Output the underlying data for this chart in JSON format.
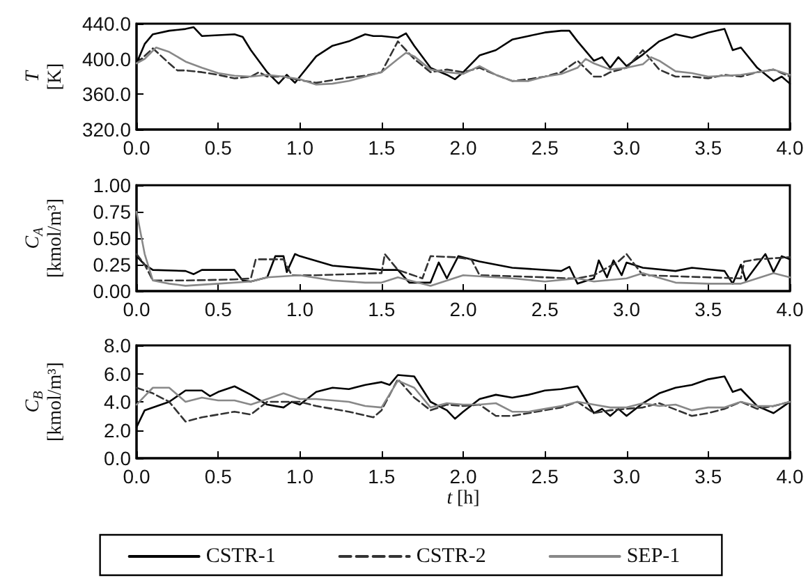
{
  "chart_data": [
    {
      "type": "line",
      "ylabel": "T [K]",
      "xlim": [
        0,
        4
      ],
      "xticks": [
        {
          "value": 0,
          "label": "0.0"
        },
        {
          "value": 0.5,
          "label": "0.5"
        },
        {
          "value": 1,
          "label": "1.0"
        },
        {
          "value": 1.5,
          "label": "1.5"
        },
        {
          "value": 2,
          "label": "2.0"
        },
        {
          "value": 2.5,
          "label": "2.5"
        },
        {
          "value": 3,
          "label": "3.0"
        },
        {
          "value": 3.5,
          "label": "3.5"
        },
        {
          "value": 4,
          "label": "4.0"
        }
      ],
      "ylim": [
        320,
        440
      ],
      "yticks": [
        {
          "value": 320,
          "label": "320.0"
        },
        {
          "value": 360,
          "label": "360.0"
        },
        {
          "value": 400,
          "label": "400.0"
        },
        {
          "value": 440,
          "label": "440.0"
        }
      ],
      "grid": false,
      "legend": false,
      "marker": "none",
      "series": [
        {
          "color": "#000000",
          "line_style": "solid",
          "x": [
            0,
            0.05,
            0.1,
            0.2,
            0.3,
            0.35,
            0.4,
            0.5,
            0.6,
            0.65,
            0.7,
            0.8,
            0.87,
            0.92,
            0.97,
            1.0,
            1.1,
            1.2,
            1.3,
            1.4,
            1.45,
            1.5,
            1.6,
            1.65,
            1.7,
            1.8,
            1.9,
            1.95,
            2.0,
            2.1,
            2.2,
            2.3,
            2.4,
            2.5,
            2.6,
            2.65,
            2.7,
            2.8,
            2.85,
            2.9,
            2.95,
            3.0,
            3.1,
            3.2,
            3.3,
            3.4,
            3.5,
            3.6,
            3.65,
            3.7,
            3.8,
            3.9,
            3.95,
            4.0
          ],
          "values": [
            395,
            417,
            428,
            432,
            434,
            436,
            426,
            427,
            428,
            425,
            410,
            385,
            372,
            382,
            373,
            380,
            403,
            415,
            420,
            428,
            426,
            426,
            424,
            429,
            415,
            390,
            382,
            377,
            385,
            404,
            410,
            422,
            426,
            430,
            432,
            432,
            420,
            398,
            402,
            390,
            402,
            392,
            405,
            420,
            428,
            424,
            430,
            434,
            410,
            413,
            390,
            375,
            380,
            372
          ]
        },
        {
          "color": "#333333",
          "line_style": "dashed",
          "x": [
            0,
            0.1,
            0.2,
            0.25,
            0.3,
            0.4,
            0.5,
            0.6,
            0.7,
            0.75,
            0.8,
            0.9,
            1.0,
            1.1,
            1.2,
            1.3,
            1.4,
            1.5,
            1.6,
            1.7,
            1.8,
            1.9,
            2.0,
            2.1,
            2.2,
            2.3,
            2.4,
            2.5,
            2.6,
            2.7,
            2.8,
            2.85,
            2.9,
            3.0,
            3.1,
            3.2,
            3.3,
            3.4,
            3.5,
            3.6,
            3.7,
            3.8,
            3.9,
            4.0
          ],
          "values": [
            395,
            412,
            395,
            387,
            387,
            385,
            382,
            378,
            380,
            385,
            380,
            380,
            376,
            373,
            376,
            379,
            381,
            385,
            420,
            400,
            385,
            388,
            385,
            390,
            382,
            375,
            377,
            380,
            385,
            398,
            380,
            380,
            385,
            390,
            410,
            388,
            380,
            380,
            378,
            382,
            380,
            385,
            388,
            380
          ]
        },
        {
          "color": "#888888",
          "line_style": "solid",
          "x": [
            0,
            0.05,
            0.12,
            0.2,
            0.3,
            0.4,
            0.5,
            0.6,
            0.7,
            0.8,
            0.9,
            1.0,
            1.1,
            1.2,
            1.3,
            1.4,
            1.5,
            1.6,
            1.65,
            1.7,
            1.8,
            1.9,
            2.0,
            2.1,
            2.2,
            2.3,
            2.4,
            2.5,
            2.6,
            2.7,
            2.75,
            2.8,
            2.9,
            3.0,
            3.1,
            3.15,
            3.2,
            3.3,
            3.4,
            3.5,
            3.6,
            3.7,
            3.8,
            3.9,
            4.0
          ],
          "values": [
            395,
            400,
            413,
            408,
            397,
            390,
            384,
            381,
            380,
            382,
            380,
            377,
            371,
            372,
            375,
            380,
            385,
            400,
            407,
            403,
            388,
            385,
            383,
            392,
            382,
            375,
            375,
            380,
            383,
            390,
            400,
            395,
            388,
            390,
            394,
            402,
            398,
            386,
            384,
            380,
            381,
            382,
            385,
            388,
            382
          ]
        }
      ]
    },
    {
      "type": "line",
      "ylabel": "C$_{A}$ [kmol/m³]",
      "xlim": [
        0,
        4
      ],
      "xticks": [
        {
          "value": 0,
          "label": "0.0"
        },
        {
          "value": 0.5,
          "label": "0.5"
        },
        {
          "value": 1,
          "label": "1.0"
        },
        {
          "value": 1.5,
          "label": "1.5"
        },
        {
          "value": 2,
          "label": "2.0"
        },
        {
          "value": 2.5,
          "label": "2.5"
        },
        {
          "value": 3,
          "label": "3.0"
        },
        {
          "value": 3.5,
          "label": "3.5"
        },
        {
          "value": 4,
          "label": "4.0"
        }
      ],
      "ylim": [
        0,
        1
      ],
      "yticks": [
        {
          "value": 0,
          "label": "0.00"
        },
        {
          "value": 0.25,
          "label": "0.25"
        },
        {
          "value": 0.5,
          "label": "0.50"
        },
        {
          "value": 0.75,
          "label": "0.75"
        },
        {
          "value": 1,
          "label": "1.00"
        }
      ],
      "grid": false,
      "legend": false,
      "marker": "none",
      "series": [
        {
          "color": "#000000",
          "line_style": "solid",
          "x": [
            0,
            0.05,
            0.1,
            0.3,
            0.35,
            0.4,
            0.6,
            0.65,
            0.7,
            0.8,
            0.85,
            0.9,
            0.92,
            0.97,
            1.0,
            1.2,
            1.5,
            1.6,
            1.67,
            1.8,
            1.85,
            1.9,
            1.97,
            2.1,
            2.3,
            2.6,
            2.65,
            2.7,
            2.8,
            2.83,
            2.88,
            2.92,
            2.97,
            3.0,
            3.1,
            3.3,
            3.4,
            3.6,
            3.65,
            3.7,
            3.73,
            3.85,
            3.9,
            3.95,
            4.0
          ],
          "values": [
            0.33,
            0.25,
            0.2,
            0.19,
            0.16,
            0.2,
            0.2,
            0.1,
            0.09,
            0.13,
            0.33,
            0.33,
            0.18,
            0.35,
            0.33,
            0.24,
            0.2,
            0.2,
            0.08,
            0.08,
            0.27,
            0.12,
            0.33,
            0.28,
            0.22,
            0.19,
            0.23,
            0.07,
            0.12,
            0.29,
            0.13,
            0.29,
            0.15,
            0.27,
            0.22,
            0.19,
            0.22,
            0.19,
            0.07,
            0.25,
            0.1,
            0.35,
            0.18,
            0.33,
            0.3
          ]
        },
        {
          "color": "#333333",
          "line_style": "dashed",
          "x": [
            0,
            0.05,
            0.1,
            0.3,
            0.6,
            0.7,
            0.73,
            0.9,
            0.95,
            1.1,
            1.5,
            1.52,
            1.6,
            1.75,
            1.8,
            1.95,
            2.05,
            2.1,
            2.5,
            2.65,
            2.7,
            2.8,
            2.95,
            3.0,
            3.1,
            3.5,
            3.7,
            3.72,
            3.8,
            4.0
          ],
          "values": [
            0.35,
            0.25,
            0.1,
            0.1,
            0.11,
            0.12,
            0.3,
            0.3,
            0.15,
            0.15,
            0.17,
            0.35,
            0.2,
            0.12,
            0.33,
            0.32,
            0.3,
            0.15,
            0.13,
            0.12,
            0.12,
            0.15,
            0.28,
            0.35,
            0.15,
            0.13,
            0.12,
            0.28,
            0.3,
            0.32
          ]
        },
        {
          "color": "#888888",
          "line_style": "solid",
          "x": [
            0,
            0.05,
            0.1,
            0.2,
            0.3,
            0.5,
            0.7,
            0.8,
            1.0,
            1.2,
            1.4,
            1.5,
            1.6,
            1.8,
            2.0,
            2.3,
            2.5,
            2.7,
            2.8,
            3.0,
            3.1,
            3.3,
            3.5,
            3.7,
            3.9,
            4.0
          ],
          "values": [
            0.75,
            0.35,
            0.1,
            0.07,
            0.05,
            0.07,
            0.09,
            0.13,
            0.15,
            0.1,
            0.08,
            0.08,
            0.13,
            0.05,
            0.15,
            0.12,
            0.09,
            0.12,
            0.09,
            0.12,
            0.17,
            0.08,
            0.07,
            0.07,
            0.17,
            0.13
          ]
        }
      ]
    },
    {
      "type": "line",
      "ylabel": "C$_{B}$ [kmol/m³]",
      "xlabel": "t [h]",
      "xlim": [
        0,
        4
      ],
      "xticks": [
        {
          "value": 0,
          "label": "0.0"
        },
        {
          "value": 0.5,
          "label": "0.5"
        },
        {
          "value": 1,
          "label": "1.0"
        },
        {
          "value": 1.5,
          "label": "1.5"
        },
        {
          "value": 2,
          "label": "2.0"
        },
        {
          "value": 2.5,
          "label": "2.5"
        },
        {
          "value": 3,
          "label": "3.0"
        },
        {
          "value": 3.5,
          "label": "3.5"
        },
        {
          "value": 4,
          "label": "4.0"
        }
      ],
      "ylim": [
        0,
        8
      ],
      "yticks": [
        {
          "value": 0,
          "label": "0.0"
        },
        {
          "value": 2,
          "label": "2.0"
        },
        {
          "value": 4,
          "label": "4.0"
        },
        {
          "value": 6,
          "label": "6.0"
        },
        {
          "value": 8,
          "label": "8.0"
        }
      ],
      "grid": false,
      "legend": "bottom",
      "marker": "none",
      "series": [
        {
          "name": "CSTR-1",
          "color": "#000000",
          "line_style": "solid",
          "x": [
            0,
            0.05,
            0.2,
            0.3,
            0.4,
            0.45,
            0.5,
            0.6,
            0.7,
            0.8,
            0.9,
            0.95,
            1.0,
            1.1,
            1.2,
            1.3,
            1.4,
            1.5,
            1.55,
            1.6,
            1.7,
            1.8,
            1.9,
            1.95,
            2.0,
            2.1,
            2.2,
            2.3,
            2.4,
            2.5,
            2.6,
            2.7,
            2.8,
            2.85,
            2.9,
            2.95,
            3.0,
            3.1,
            3.2,
            3.3,
            3.4,
            3.5,
            3.6,
            3.65,
            3.7,
            3.8,
            3.9,
            3.95,
            4.0
          ],
          "values": [
            2.2,
            3.4,
            4.0,
            4.8,
            4.8,
            4.4,
            4.7,
            5.1,
            4.5,
            3.8,
            3.6,
            4.0,
            3.8,
            4.7,
            5.0,
            4.9,
            5.2,
            5.4,
            5.2,
            5.9,
            5.8,
            4.0,
            3.4,
            2.8,
            3.3,
            4.2,
            4.5,
            4.3,
            4.5,
            4.8,
            4.9,
            5.1,
            3.2,
            3.5,
            3.0,
            3.5,
            3.0,
            3.9,
            4.6,
            5.0,
            5.2,
            5.6,
            5.8,
            4.7,
            4.9,
            3.7,
            3.2,
            3.6,
            4.0
          ]
        },
        {
          "name": "CSTR-2",
          "color": "#333333",
          "line_style": "dashed",
          "x": [
            0,
            0.1,
            0.2,
            0.3,
            0.4,
            0.5,
            0.6,
            0.7,
            0.8,
            0.9,
            1.0,
            1.1,
            1.2,
            1.3,
            1.45,
            1.5,
            1.6,
            1.7,
            1.8,
            1.9,
            2.0,
            2.1,
            2.2,
            2.3,
            2.4,
            2.5,
            2.6,
            2.7,
            2.8,
            2.9,
            3.0,
            3.1,
            3.2,
            3.4,
            3.5,
            3.6,
            3.7,
            3.8,
            3.9,
            4.0
          ],
          "values": [
            5.0,
            4.6,
            4.0,
            2.6,
            2.9,
            3.1,
            3.3,
            3.1,
            4.0,
            4.0,
            4.0,
            3.7,
            3.5,
            3.3,
            2.9,
            3.4,
            5.6,
            4.3,
            3.4,
            3.8,
            3.7,
            3.8,
            3.0,
            3.0,
            3.2,
            3.4,
            3.6,
            4.0,
            3.2,
            3.4,
            3.5,
            3.6,
            3.9,
            3.0,
            3.2,
            3.5,
            4.0,
            3.5,
            3.7,
            4.0
          ]
        },
        {
          "name": "SEP-1",
          "color": "#888888",
          "line_style": "solid",
          "x": [
            0,
            0.05,
            0.1,
            0.2,
            0.3,
            0.4,
            0.5,
            0.6,
            0.7,
            0.8,
            0.9,
            1.0,
            1.1,
            1.2,
            1.3,
            1.4,
            1.5,
            1.6,
            1.7,
            1.8,
            1.9,
            2.0,
            2.1,
            2.2,
            2.3,
            2.4,
            2.5,
            2.6,
            2.7,
            2.8,
            2.9,
            3.0,
            3.1,
            3.2,
            3.3,
            3.4,
            3.5,
            3.6,
            3.7,
            3.8,
            3.9,
            4.0
          ],
          "values": [
            3.8,
            4.4,
            5.0,
            5.0,
            4.0,
            4.3,
            4.1,
            4.1,
            3.8,
            4.2,
            4.6,
            4.2,
            4.2,
            4.1,
            4.0,
            3.7,
            3.6,
            5.5,
            5.0,
            3.6,
            3.9,
            3.8,
            3.8,
            3.9,
            3.3,
            3.3,
            3.5,
            3.7,
            4.0,
            3.8,
            3.6,
            3.6,
            3.9,
            3.7,
            3.8,
            3.4,
            3.6,
            3.6,
            4.0,
            3.7,
            3.7,
            4.0
          ]
        }
      ]
    }
  ]
}
